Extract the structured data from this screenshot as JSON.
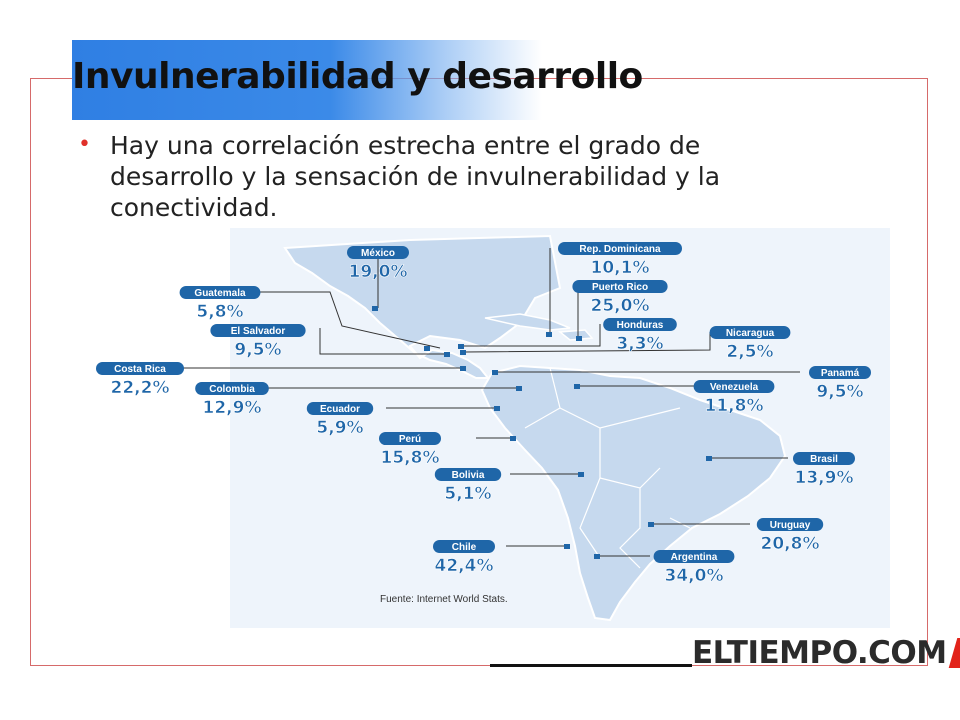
{
  "slide": {
    "title": "Invulnerabilidad y desarrollo",
    "bullet": "Hay una correlación estrecha entre el grado de desarrollo y la sensación de invulnerabilidad y la conectividad.",
    "source": "Fuente: Internet World Stats.",
    "logo": "ELTIEMPO.COM"
  },
  "colors": {
    "title_band": "#3b8ae8",
    "frame": "#d66a6a",
    "bullet": "#e0302a",
    "badge": "#1f66a8",
    "land": "#c6d9ee",
    "logo_slash": "#e2231a"
  },
  "map_labels": [
    {
      "id": "mexico",
      "name": "México",
      "value": "19,0%"
    },
    {
      "id": "rep-dominicana",
      "name": "Rep. Dominicana",
      "value": "10,1%"
    },
    {
      "id": "guatemala",
      "name": "Guatemala",
      "value": "5,8%"
    },
    {
      "id": "puerto-rico",
      "name": "Puerto Rico",
      "value": "25,0%"
    },
    {
      "id": "honduras",
      "name": "Honduras",
      "value": "3,3%"
    },
    {
      "id": "el-salvador",
      "name": "El Salvador",
      "value": "9,5%"
    },
    {
      "id": "nicaragua",
      "name": "Nicaragua",
      "value": "2,5%"
    },
    {
      "id": "costa-rica",
      "name": "Costa Rica",
      "value": "22,2%"
    },
    {
      "id": "panama",
      "name": "Panamá",
      "value": "9,5%"
    },
    {
      "id": "colombia",
      "name": "Colombia",
      "value": "12,9%"
    },
    {
      "id": "venezuela",
      "name": "Venezuela",
      "value": "11,8%"
    },
    {
      "id": "ecuador",
      "name": "Ecuador",
      "value": "5,9%"
    },
    {
      "id": "peru",
      "name": "Perú",
      "value": "15,8%"
    },
    {
      "id": "brasil",
      "name": "Brasil",
      "value": "13,9%"
    },
    {
      "id": "bolivia",
      "name": "Bolivia",
      "value": "5,1%"
    },
    {
      "id": "uruguay",
      "name": "Uruguay",
      "value": "20,8%"
    },
    {
      "id": "chile",
      "name": "Chile",
      "value": "42,4%"
    },
    {
      "id": "argentina",
      "name": "Argentina",
      "value": "34,0%"
    }
  ]
}
